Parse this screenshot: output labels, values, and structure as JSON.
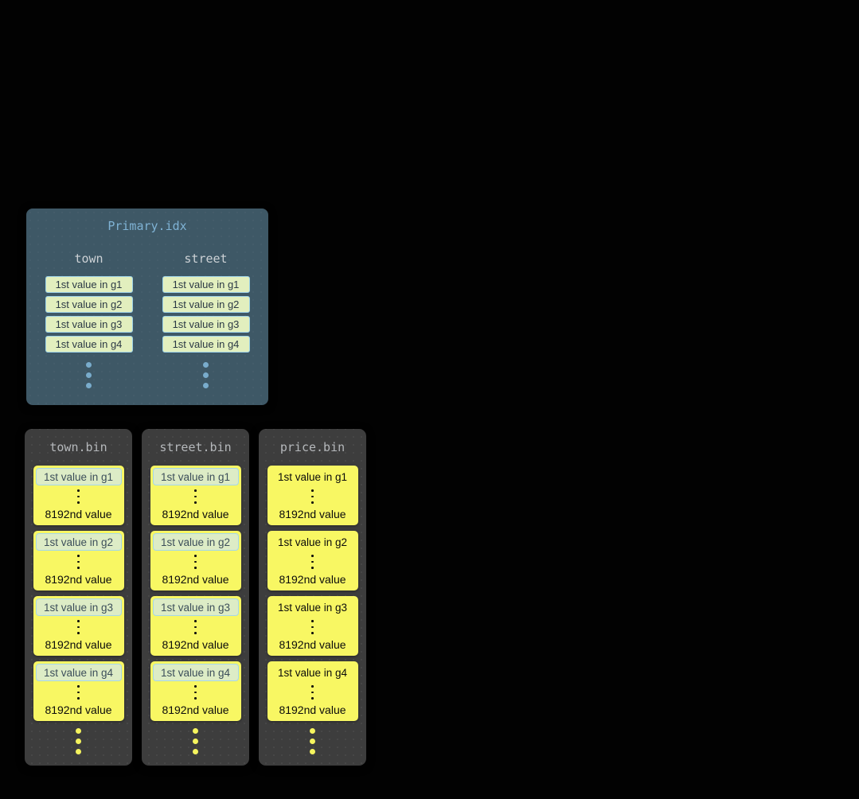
{
  "palette": {
    "background": "#020202",
    "primary_box_bg": "#3e5866",
    "primary_title_text": "#7fb2d4",
    "primary_header_text": "#ccd1d5",
    "index_cell_bg": "#e2efbe",
    "index_cell_border": "#9dd2e8",
    "index_cell_text": "#2b3945",
    "blue_dot": "#79accc",
    "bin_box_bg": "#3d3d3d",
    "bin_title_text": "#b5b8bb",
    "granule_bg": "#f8f763",
    "granule_text": "#0b0b0b",
    "highlight_cell_bg": "#ddecc6",
    "highlight_cell_border": "#a5d7e8",
    "highlight_cell_text": "#3c4e5a",
    "yellow_dot": "#f5f45e"
  },
  "primary_idx": {
    "title": "Primary.idx",
    "columns": [
      {
        "name": "town",
        "cells": [
          "1st value in g1",
          "1st value in g2",
          "1st value in g3",
          "1st value in g4"
        ]
      },
      {
        "name": "street",
        "cells": [
          "1st value in g1",
          "1st value in g2",
          "1st value in g3",
          "1st value in g4"
        ]
      }
    ]
  },
  "bins": [
    {
      "title": "town.bin",
      "first_cell_highlighted": true,
      "granules": [
        {
          "first": "1st value in g1",
          "last": "8192nd value"
        },
        {
          "first": "1st value in g2",
          "last": "8192nd value"
        },
        {
          "first": "1st value in g3",
          "last": "8192nd value"
        },
        {
          "first": "1st value in g4",
          "last": "8192nd value"
        }
      ]
    },
    {
      "title": "street.bin",
      "first_cell_highlighted": true,
      "granules": [
        {
          "first": "1st value in g1",
          "last": "8192nd value"
        },
        {
          "first": "1st value in g2",
          "last": "8192nd value"
        },
        {
          "first": "1st value in g3",
          "last": "8192nd value"
        },
        {
          "first": "1st value in g4",
          "last": "8192nd value"
        }
      ]
    },
    {
      "title": "price.bin",
      "first_cell_highlighted": false,
      "granules": [
        {
          "first": "1st value in g1",
          "last": "8192nd value"
        },
        {
          "first": "1st value in g2",
          "last": "8192nd value"
        },
        {
          "first": "1st value in g3",
          "last": "8192nd value"
        },
        {
          "first": "1st value in g4",
          "last": "8192nd value"
        }
      ]
    }
  ]
}
